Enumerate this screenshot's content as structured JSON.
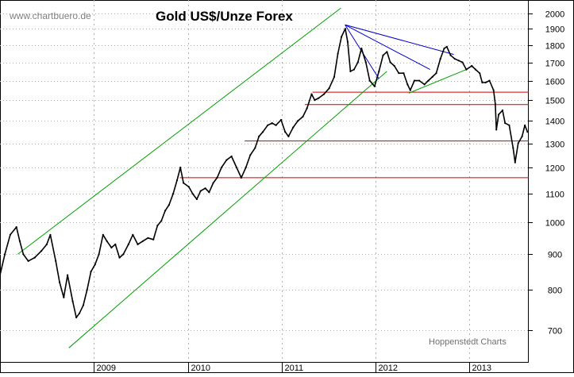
{
  "watermark": "www.chartbuero.de",
  "credit": "Hoppenstedt Charts",
  "colors": {
    "price": "#000000",
    "channel": "#00a000",
    "resistance": "#0000cc",
    "horizontal": "#cc0000",
    "grid": "#b0b0b0",
    "watermark": "#808080",
    "credit": "#707070"
  },
  "chart_data": {
    "type": "line",
    "title": "Gold US$/Unze Forex",
    "xlabel": "",
    "ylabel": "",
    "y_scale": "log",
    "ylim": [
      630,
      2090
    ],
    "xlim": [
      "2008-01-01",
      "2013-08-20"
    ],
    "y_ticks": [
      700,
      800,
      900,
      1000,
      1100,
      1200,
      1300,
      1400,
      1500,
      1600,
      1700,
      1800,
      1900,
      2000
    ],
    "x_ticks": [
      {
        "date": "2009-01-01",
        "label": "2009"
      },
      {
        "date": "2010-01-01",
        "label": "2010"
      },
      {
        "date": "2011-01-01",
        "label": "2011"
      },
      {
        "date": "2012-01-01",
        "label": "2012"
      },
      {
        "date": "2013-01-01",
        "label": "2013"
      }
    ],
    "series": [
      {
        "x": [
          "2008-01-01",
          "2008-01-20",
          "2008-02-10",
          "2008-03-05",
          "2008-03-18",
          "2008-04-01",
          "2008-04-20",
          "2008-05-15",
          "2008-06-10",
          "2008-07-01",
          "2008-07-15",
          "2008-08-05",
          "2008-08-20",
          "2008-09-05",
          "2008-09-20",
          "2008-10-10",
          "2008-10-24",
          "2008-11-05",
          "2008-11-20",
          "2008-12-05",
          "2008-12-20",
          "2009-01-05",
          "2009-01-20",
          "2009-02-05",
          "2009-02-20",
          "2009-03-10",
          "2009-03-25",
          "2009-04-10",
          "2009-04-25",
          "2009-05-15",
          "2009-06-01",
          "2009-06-20",
          "2009-07-10",
          "2009-07-30",
          "2009-08-20",
          "2009-09-05",
          "2009-09-20",
          "2009-10-05",
          "2009-10-20",
          "2009-11-05",
          "2009-11-20",
          "2009-12-03",
          "2009-12-15",
          "2010-01-05",
          "2010-01-20",
          "2010-02-05",
          "2010-02-20",
          "2010-03-10",
          "2010-03-25",
          "2010-04-10",
          "2010-04-25",
          "2010-05-12",
          "2010-06-01",
          "2010-06-20",
          "2010-07-10",
          "2010-07-28",
          "2010-08-15",
          "2010-09-01",
          "2010-09-20",
          "2010-10-05",
          "2010-10-20",
          "2010-11-08",
          "2010-11-25",
          "2010-12-10",
          "2010-12-30",
          "2011-01-15",
          "2011-01-28",
          "2011-02-15",
          "2011-03-05",
          "2011-03-25",
          "2011-04-10",
          "2011-04-28",
          "2011-05-10",
          "2011-05-25",
          "2011-06-15",
          "2011-07-05",
          "2011-07-25",
          "2011-08-08",
          "2011-08-22",
          "2011-09-06",
          "2011-09-15",
          "2011-09-26",
          "2011-10-10",
          "2011-10-25",
          "2011-11-08",
          "2011-11-25",
          "2011-12-10",
          "2011-12-29",
          "2012-01-15",
          "2012-01-31",
          "2012-02-15",
          "2012-02-28",
          "2012-03-15",
          "2012-04-01",
          "2012-04-20",
          "2012-05-05",
          "2012-05-16",
          "2012-06-01",
          "2012-06-20",
          "2012-07-10",
          "2012-07-25",
          "2012-08-10",
          "2012-08-25",
          "2012-09-10",
          "2012-09-25",
          "2012-10-05",
          "2012-10-20",
          "2012-11-05",
          "2012-11-20",
          "2012-12-05",
          "2012-12-20",
          "2013-01-10",
          "2013-01-25",
          "2013-02-10",
          "2013-02-20",
          "2013-03-05",
          "2013-03-20",
          "2013-04-05",
          "2013-04-12",
          "2013-04-16",
          "2013-04-25",
          "2013-05-10",
          "2013-05-20",
          "2013-06-05",
          "2013-06-20",
          "2013-06-28",
          "2013-07-10",
          "2013-07-25",
          "2013-08-05",
          "2013-08-15"
        ],
        "y": [
          840,
          900,
          960,
          985,
          940,
          900,
          880,
          890,
          910,
          930,
          960,
          880,
          820,
          780,
          840,
          770,
          730,
          740,
          760,
          800,
          850,
          870,
          900,
          960,
          940,
          920,
          930,
          890,
          900,
          930,
          960,
          930,
          940,
          950,
          945,
          990,
          1005,
          1040,
          1060,
          1100,
          1150,
          1200,
          1140,
          1125,
          1100,
          1080,
          1110,
          1120,
          1105,
          1140,
          1160,
          1200,
          1230,
          1245,
          1200,
          1160,
          1200,
          1250,
          1280,
          1330,
          1350,
          1380,
          1390,
          1380,
          1405,
          1350,
          1330,
          1370,
          1400,
          1420,
          1460,
          1530,
          1500,
          1510,
          1530,
          1560,
          1620,
          1750,
          1850,
          1900,
          1820,
          1650,
          1660,
          1700,
          1780,
          1700,
          1600,
          1570,
          1650,
          1740,
          1760,
          1700,
          1680,
          1640,
          1640,
          1580,
          1550,
          1600,
          1600,
          1580,
          1600,
          1620,
          1640,
          1720,
          1780,
          1790,
          1740,
          1720,
          1710,
          1700,
          1660,
          1680,
          1660,
          1640,
          1590,
          1590,
          1600,
          1550,
          1480,
          1360,
          1430,
          1450,
          1390,
          1380,
          1280,
          1220,
          1300,
          1330,
          1380,
          1350
        ]
      }
    ],
    "channel_lines": [
      {
        "from": {
          "date": "2008-03-10",
          "value": 900
        },
        "to": {
          "date": "2011-08-20",
          "value": 2035
        }
      },
      {
        "from": {
          "date": "2008-09-25",
          "value": 660
        },
        "to": {
          "date": "2012-02-15",
          "value": 1650
        }
      }
    ],
    "resistance_lines": [
      {
        "from": {
          "date": "2011-09-05",
          "value": 1925
        },
        "to": {
          "date": "2012-11-01",
          "value": 1745
        }
      },
      {
        "from": {
          "date": "2011-09-05",
          "value": 1925
        },
        "to": {
          "date": "2012-08-01",
          "value": 1660
        }
      },
      {
        "from": {
          "date": "2011-09-05",
          "value": 1925
        },
        "to": {
          "date": "2012-01-15",
          "value": 1610
        }
      }
    ],
    "support_line": {
      "from": {
        "date": "2012-05-10",
        "value": 1535
      },
      "to": {
        "date": "2012-12-20",
        "value": 1660
      }
    },
    "horizontal_lines": [
      {
        "value": 1540,
        "from": "2011-05-01",
        "to": "2013-08-20"
      },
      {
        "value": 1478,
        "from": "2011-04-01",
        "to": "2013-08-20"
      },
      {
        "value": 1310,
        "from": "2010-08-10",
        "to": "2013-08-20"
      },
      {
        "value": 1160,
        "from": "2009-12-01",
        "to": "2013-08-20"
      }
    ]
  }
}
